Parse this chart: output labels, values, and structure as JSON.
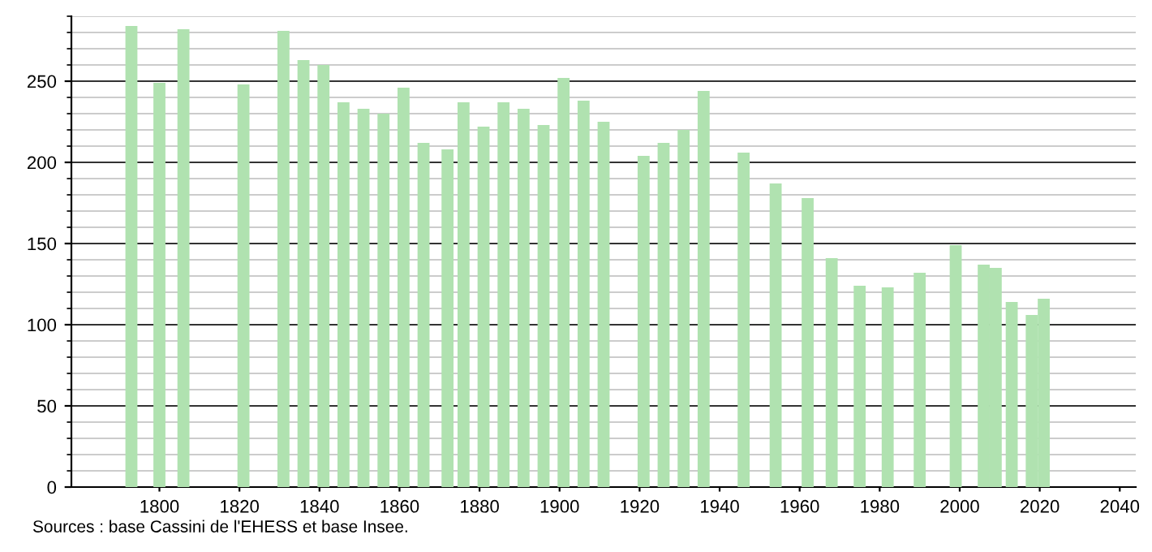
{
  "chart_data": {
    "type": "bar",
    "x": [
      1793,
      1800,
      1806,
      1821,
      1831,
      1836,
      1841,
      1846,
      1851,
      1856,
      1861,
      1866,
      1872,
      1876,
      1881,
      1886,
      1891,
      1896,
      1901,
      1906,
      1911,
      1921,
      1926,
      1931,
      1936,
      1946,
      1954,
      1962,
      1968,
      1975,
      1982,
      1990,
      1999,
      2006,
      2009,
      2013,
      2018,
      2021
    ],
    "values": [
      284,
      249,
      282,
      248,
      281,
      263,
      260,
      237,
      233,
      230,
      246,
      212,
      208,
      237,
      222,
      237,
      233,
      223,
      252,
      238,
      225,
      204,
      212,
      220,
      244,
      206,
      187,
      178,
      141,
      124,
      123,
      132,
      149,
      137,
      135,
      114,
      106,
      116
    ],
    "color": "#b0e2b0",
    "xlim": [
      1778,
      2044
    ],
    "xticks": [
      1800,
      1820,
      1840,
      1860,
      1880,
      1900,
      1920,
      1940,
      1960,
      1980,
      2000,
      2020,
      2040
    ],
    "ylim": [
      0,
      290
    ],
    "yticks": [
      0,
      50,
      100,
      150,
      200,
      250
    ],
    "grid": "y",
    "annotations": [
      "Sources : base Cassini de l'EHESS et base Insee."
    ]
  }
}
